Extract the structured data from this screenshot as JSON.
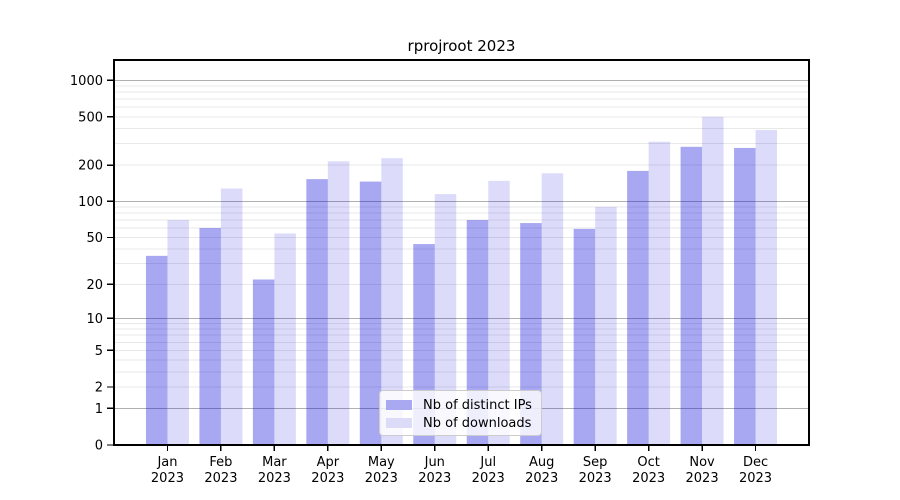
{
  "chart_data": {
    "type": "bar",
    "title": "rprojroot 2023",
    "categories": [
      "Jan 2023",
      "Feb 2023",
      "Mar 2023",
      "Apr 2023",
      "May 2023",
      "Jun 2023",
      "Jul 2023",
      "Aug 2023",
      "Sep 2023",
      "Oct 2023",
      "Nov 2023",
      "Dec 2023"
    ],
    "series": [
      {
        "key": "distinct-ips",
        "name": "Nb of distinct IPs",
        "color": "#a9a9f1",
        "bar_base": "#0000d9",
        "bar_alpha": 0.34,
        "values": [
          35,
          60,
          22,
          153,
          146,
          44,
          70,
          66,
          59,
          179,
          283,
          277
        ]
      },
      {
        "key": "downloads",
        "name": "Nb of downloads",
        "color": "#dcdcf9",
        "bar_base": "#0000d9",
        "bar_alpha": 0.137,
        "values": [
          70,
          128,
          54,
          215,
          228,
          115,
          148,
          171,
          90,
          312,
          500,
          390
        ]
      }
    ],
    "xlabel": "",
    "ylabel": "",
    "yticks": [
      0,
      1,
      2,
      5,
      10,
      20,
      50,
      100,
      200,
      500,
      1000
    ],
    "scale": "log1p",
    "ylim": [
      0,
      1470
    ],
    "grid": "horizontal, log decades major + subdivisions minor",
    "legend_position": "bottom-center",
    "background": "#ffffff",
    "axis_color": "#000000",
    "major_grid_color": "#b0b0b0",
    "minor_grid_color": "#e8e8e8"
  }
}
